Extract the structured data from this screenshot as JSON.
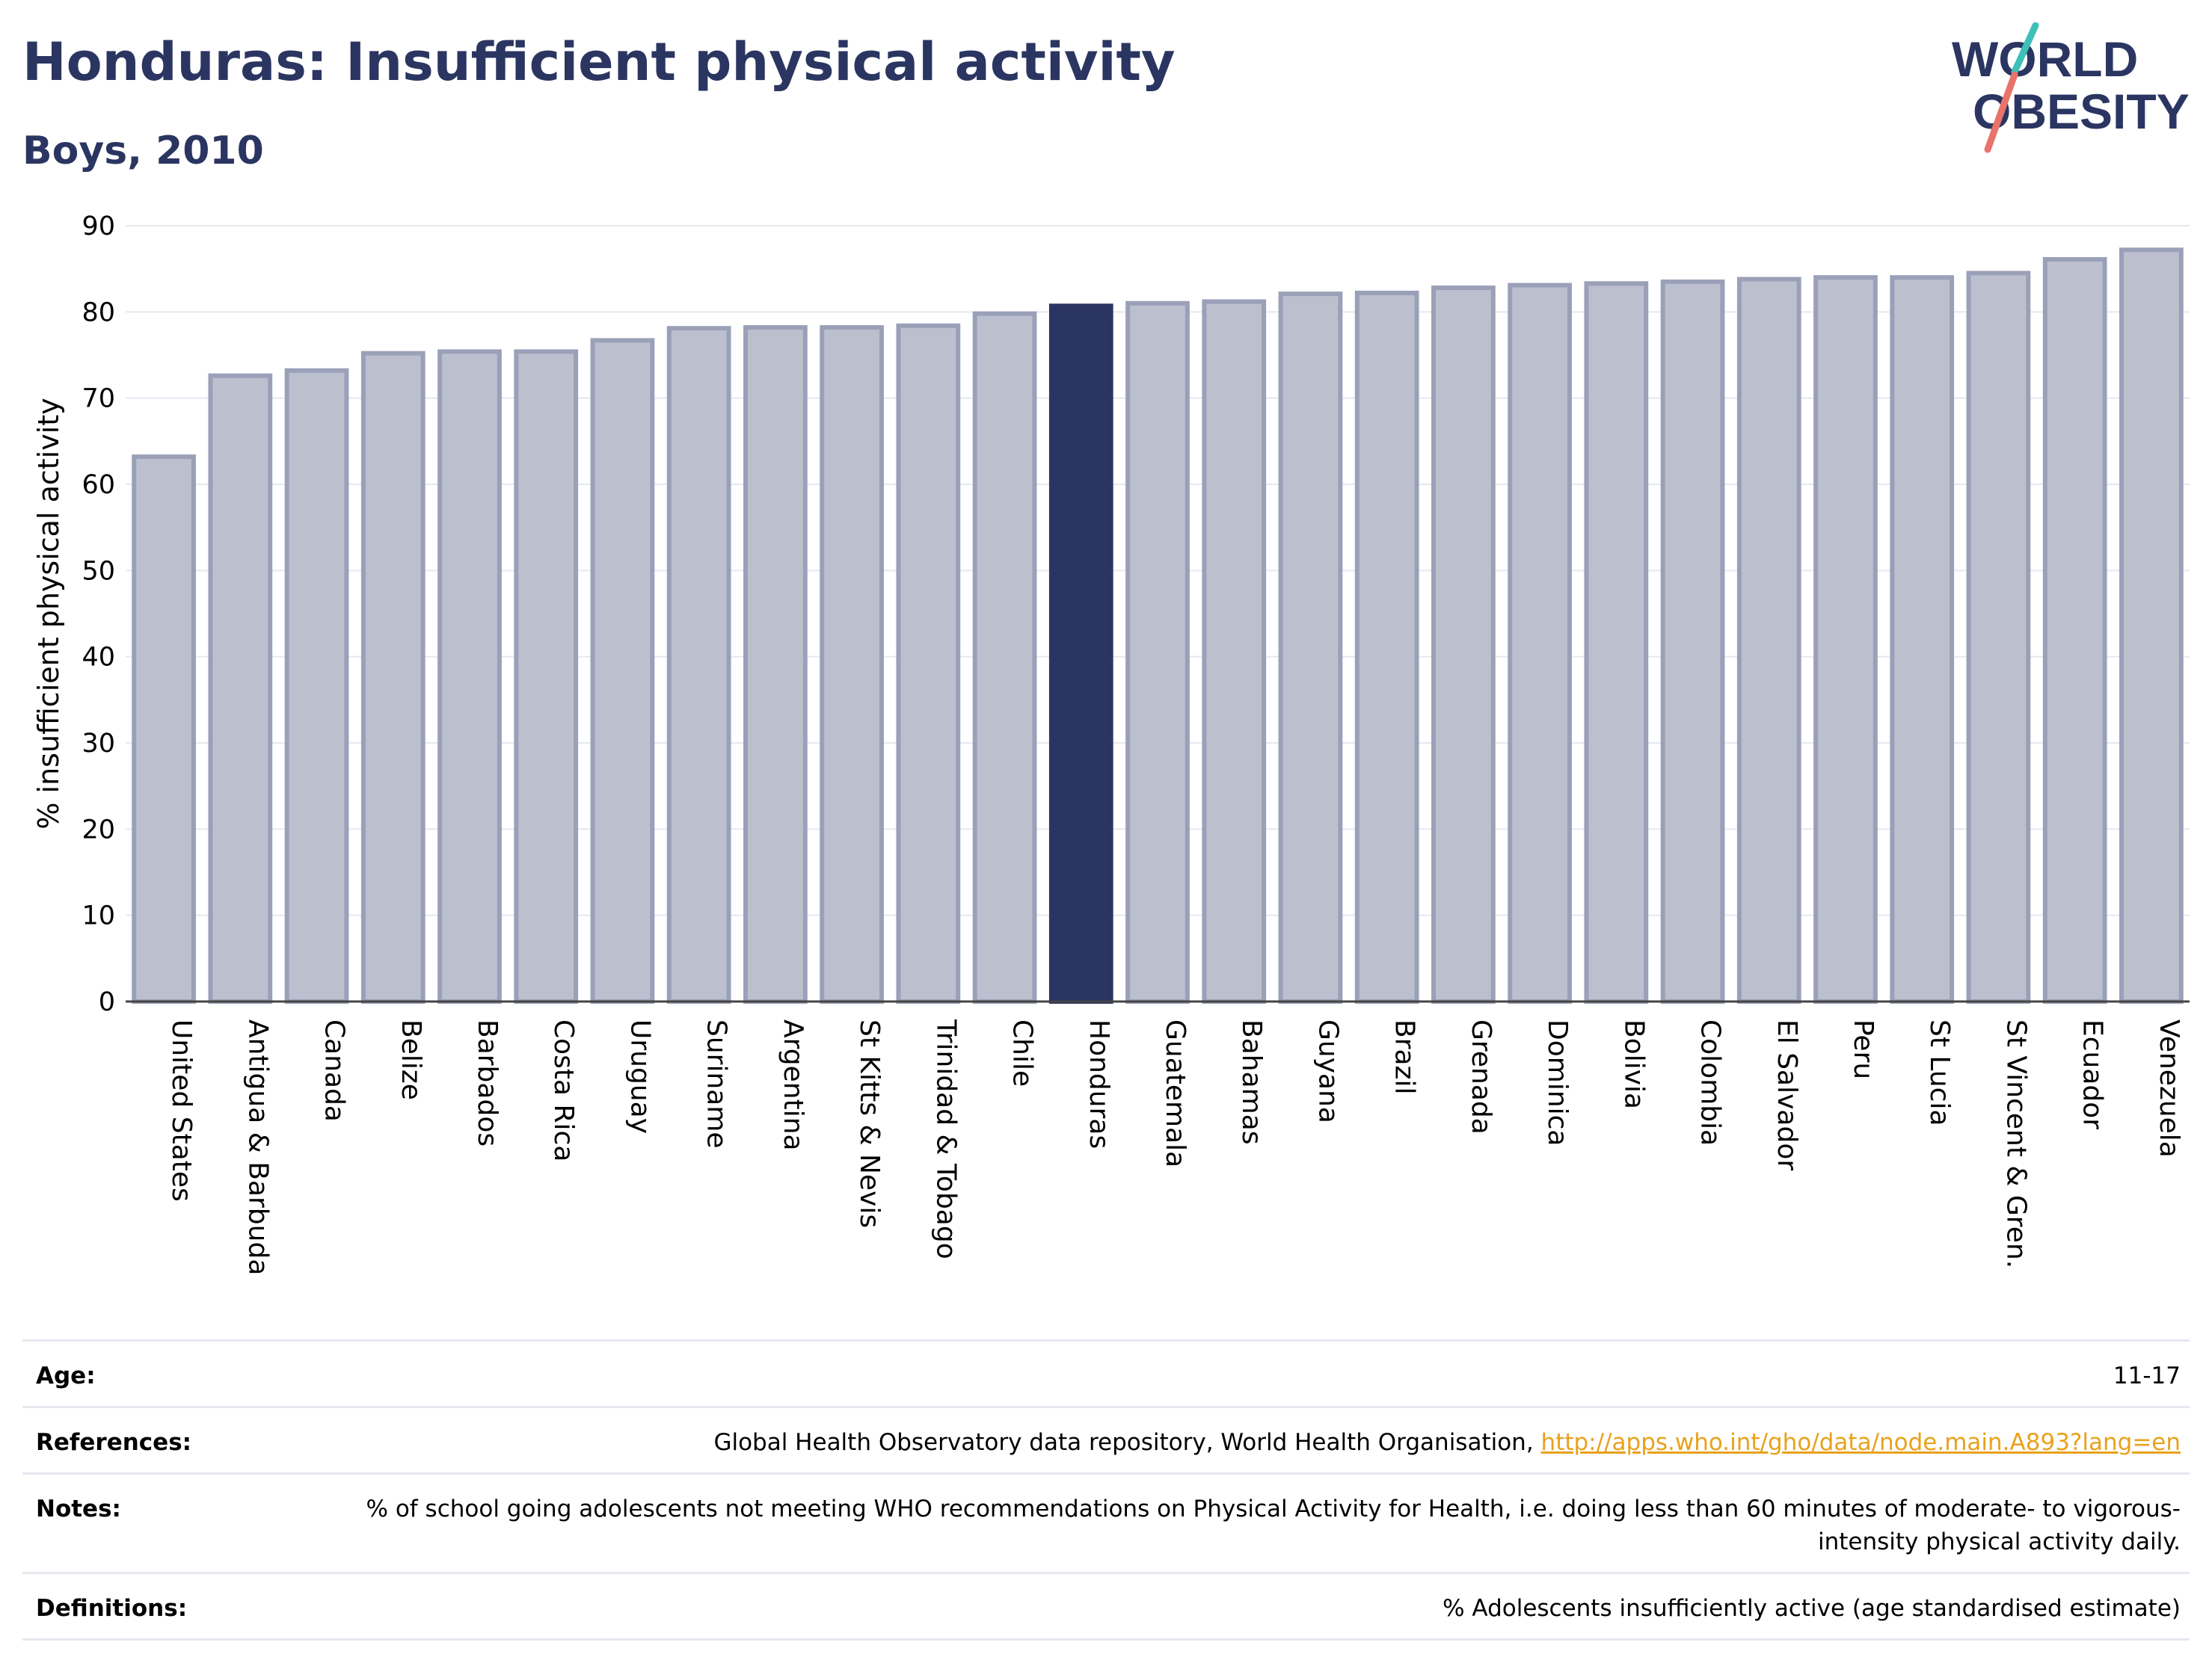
{
  "title": "Honduras: Insufficient physical activity",
  "subtitle": "Boys, 2010",
  "logo": {
    "line1": "WORLD",
    "line2": "OBESITY"
  },
  "colors": {
    "title": "#2b3561",
    "bar": "#bcc0ce",
    "bar_stroke": "#9aa0b8",
    "highlight": "#2b3561",
    "link": "#e8a21c",
    "grid": "#e6e8f0"
  },
  "chart_data": {
    "type": "bar",
    "ylabel": "% insufficient physical activity",
    "xlabel": "",
    "ylim": [
      0,
      90
    ],
    "yticks": [
      0,
      10,
      20,
      30,
      40,
      50,
      60,
      70,
      80,
      90
    ],
    "grid": true,
    "highlight": "Honduras",
    "categories": [
      "United States",
      "Antigua & Barbuda",
      "Canada",
      "Belize",
      "Barbados",
      "Costa Rica",
      "Uruguay",
      "Suriname",
      "Argentina",
      "St Kitts & Nevis",
      "Trinidad & Tobago",
      "Chile",
      "Honduras",
      "Guatemala",
      "Bahamas",
      "Guyana",
      "Brazil",
      "Grenada",
      "Dominica",
      "Bolivia",
      "Colombia",
      "El Salvador",
      "Peru",
      "St Lucia",
      "St Vincent & Gren.",
      "Ecuador",
      "Venezuela"
    ],
    "values": [
      63.2,
      72.6,
      73.2,
      75.2,
      75.4,
      75.4,
      76.7,
      78.1,
      78.2,
      78.2,
      78.4,
      79.8,
      80.7,
      81.0,
      81.2,
      82.1,
      82.2,
      82.8,
      83.1,
      83.3,
      83.5,
      83.8,
      84.0,
      84.0,
      84.5,
      86.1,
      87.2
    ]
  },
  "meta": {
    "age_label": "Age:",
    "age_value": "11-17",
    "references_label": "References:",
    "references_text": "Global Health Observatory data repository, World Health Organisation,",
    "references_link": "http://apps.who.int/gho/data/node.main.A893?lang=en",
    "notes_label": "Notes:",
    "notes_text": "% of school going adolescents not meeting WHO recommendations on Physical Activity for Health, i.e. doing less than 60 minutes of moderate- to vigorous-intensity physical activity daily.",
    "definitions_label": "Definitions:",
    "definitions_text": "% Adolescents insufficiently active (age standardised estimate)"
  }
}
